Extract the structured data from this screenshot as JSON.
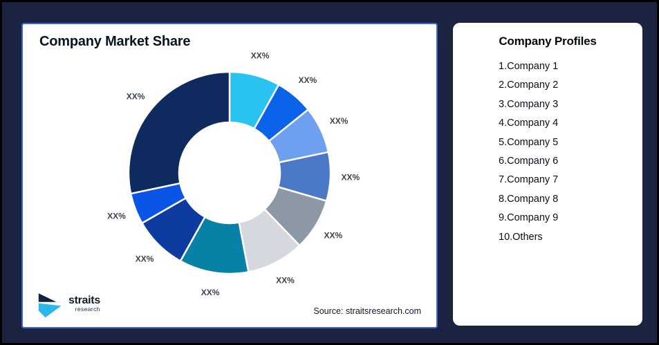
{
  "theme": {
    "page_background": "#1A2440",
    "outer_frame": "#000000",
    "card_background": "#FFFFFF",
    "chart_card_border": "#3E63D8",
    "slice_label_color": "#3C434E"
  },
  "chart_card": {
    "title": "Company Market Share",
    "source": "Source: straitsresearch.com",
    "logo": {
      "name": "straits",
      "sub": "research",
      "icon_navy": "#14223F",
      "icon_cyan": "#29B8E8"
    }
  },
  "chart_data": {
    "type": "pie",
    "subtype": "donut",
    "title": "Company Market Share",
    "start_angle_deg": 0,
    "direction": "clockwise",
    "inner_radius_ratio": 0.5,
    "value_unit": "percent_of_circle_estimated_from_arc_angles",
    "segments": [
      {
        "label": "XX%",
        "value": 8.1,
        "color": "#2AC3F0"
      },
      {
        "label": "XX%",
        "value": 6.1,
        "color": "#0A63E8"
      },
      {
        "label": "XX%",
        "value": 7.5,
        "color": "#6FA0F0"
      },
      {
        "label": "XX%",
        "value": 7.8,
        "color": "#4B79C8"
      },
      {
        "label": "XX%",
        "value": 8.3,
        "color": "#8D97A6"
      },
      {
        "label": "XX%",
        "value": 9.2,
        "color": "#D5D8DF"
      },
      {
        "label": "XX%",
        "value": 11.1,
        "color": "#0781A6"
      },
      {
        "label": "XX%",
        "value": 8.6,
        "color": "#0E3BA0"
      },
      {
        "label": "XX%",
        "value": 5.0,
        "color": "#0B55E6"
      },
      {
        "label": "XX%",
        "value": 28.3,
        "color": "#0E2A5E"
      }
    ],
    "source": "Source: straitsresearch.com",
    "legend": "none"
  },
  "profiles_card": {
    "title": "Company Profiles",
    "items": [
      "1.Company 1",
      "2.Company 2",
      "3.Company 3",
      "4.Company 4",
      "5.Company 5",
      "6.Company 6",
      "7.Company 7",
      "8.Company 8",
      "9.Company 9",
      "10.Others"
    ]
  }
}
